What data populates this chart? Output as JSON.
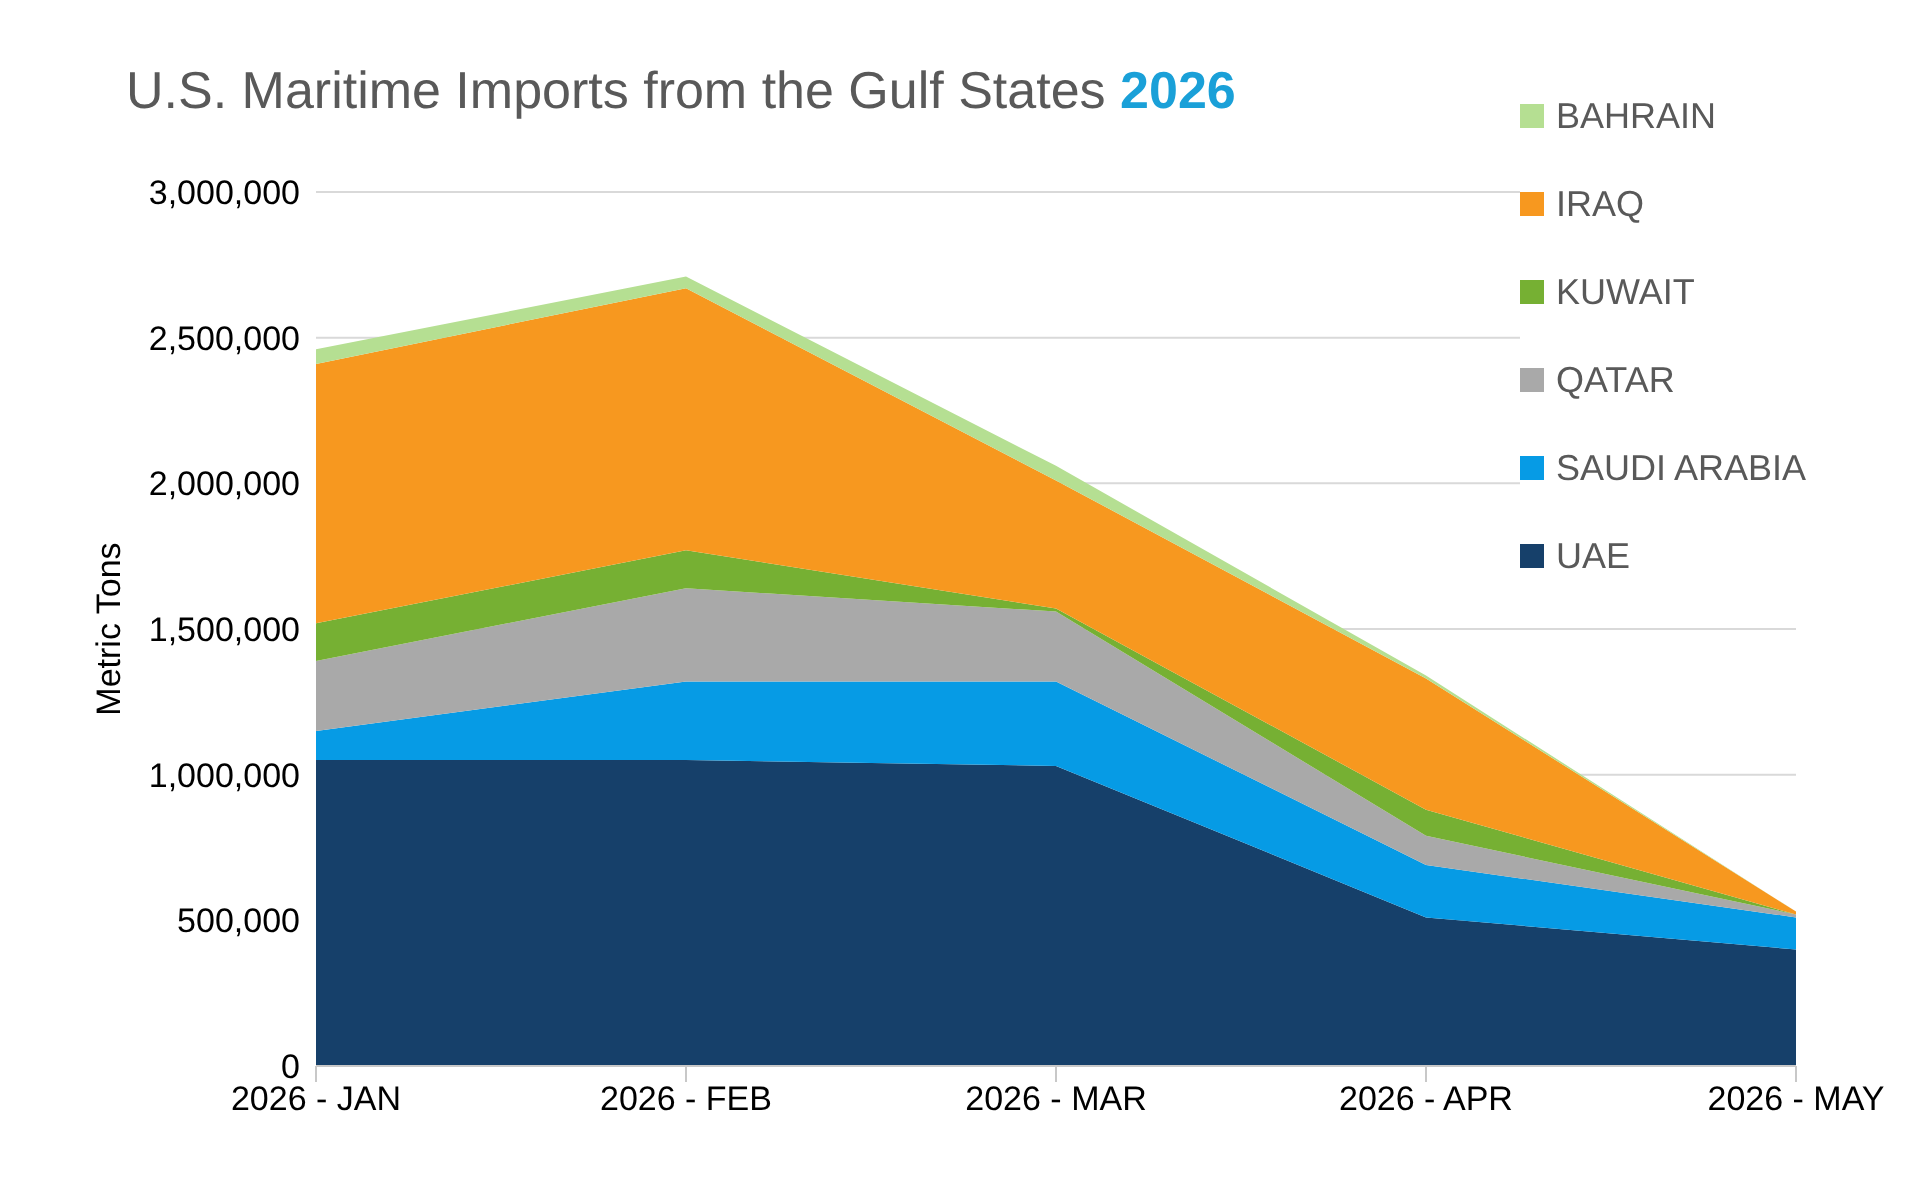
{
  "chart_data": {
    "type": "area",
    "title": "U.S. Maritime Imports from the Gulf States 2026",
    "ylabel": "Metric Tons",
    "categories": [
      "2026 - JAN",
      "2026 - FEB",
      "2026 - MAR",
      "2026 - APR",
      "2026 - MAY"
    ],
    "stacked": true,
    "series": [
      {
        "name": "UAE",
        "color": "#16406a",
        "values": [
          1050000,
          1050000,
          1030000,
          510000,
          400000
        ]
      },
      {
        "name": "SAUDI ARABIA",
        "color": "#069be5",
        "values": [
          100000,
          270000,
          290000,
          180000,
          110000
        ]
      },
      {
        "name": "QATAR",
        "color": "#a9a9a9",
        "values": [
          240000,
          320000,
          240000,
          100000,
          10000
        ]
      },
      {
        "name": "KUWAIT",
        "color": "#76b033",
        "values": [
          130000,
          130000,
          10000,
          90000,
          0
        ]
      },
      {
        "name": "IRAQ",
        "color": "#f7981f",
        "values": [
          890000,
          900000,
          440000,
          450000,
          10000
        ]
      },
      {
        "name": "BAHRAIN",
        "color": "#b5df92",
        "values": [
          50000,
          40000,
          50000,
          10000,
          0
        ]
      }
    ],
    "ylim": [
      0,
      3000000
    ],
    "yticks": [
      0,
      {
        "value": 500000,
        "label": "500,000"
      },
      {
        "value": 1000000,
        "label": "1,000,000"
      },
      {
        "value": 1500000,
        "label": "1,500,000"
      },
      {
        "value": 2000000,
        "label": "2,000,000"
      },
      {
        "value": 2500000,
        "label": "2,500,000"
      },
      {
        "value": 3000000,
        "label": "3,000,000"
      }
    ],
    "grid": "y",
    "legend": "top right"
  }
}
